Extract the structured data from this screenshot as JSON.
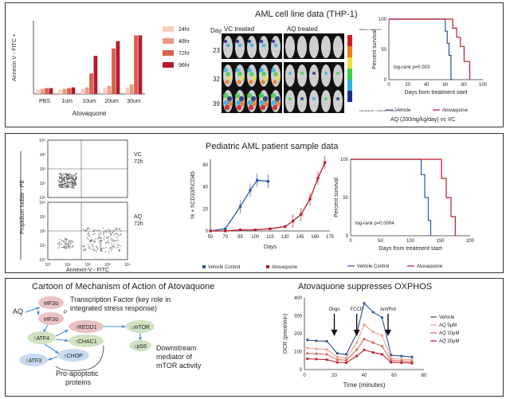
{
  "panel1": {
    "bar_chart": {
      "type": "bar",
      "ylabel": "Annexin V - FITC +",
      "xlabel": "Atovaquone",
      "categories": [
        "PBS",
        "1um",
        "10um",
        "20um",
        "30um"
      ],
      "series": [
        {
          "name": "24hr",
          "color": "#f6cdbf",
          "values": [
            6,
            6,
            7,
            8,
            9
          ]
        },
        {
          "name": "48hr",
          "color": "#e99a86",
          "values": [
            7,
            7,
            9,
            11,
            13
          ]
        },
        {
          "name": "72hr",
          "color": "#d6624e",
          "values": [
            8,
            8,
            28,
            62,
            80
          ]
        },
        {
          "name": "96hr",
          "color": "#b81a2c",
          "values": [
            8,
            9,
            52,
            72,
            80
          ]
        }
      ],
      "ylim": [
        0,
        100
      ]
    },
    "imaging": {
      "title": "AML cell line data (THP-1)",
      "day_label": "Day",
      "col_labels": [
        "VC treated",
        "AQ treated"
      ],
      "days": [
        "23",
        "32",
        "39"
      ],
      "scale_top": "Radiance (p/sec/cm²/sr)",
      "scale_bottom": "Color Scale Min = 1.00e4 Max = 1.00e6"
    },
    "survival": {
      "ylabel": "Percent survival",
      "xlabel": "Days from treatment start",
      "yticks": [
        "0",
        "50",
        "100"
      ],
      "xticks": [
        "0",
        "20",
        "40",
        "60",
        "80",
        "100"
      ],
      "pvalue": "log-rank p=0.003",
      "legend": [
        {
          "name": "Vehicle",
          "color": "#2b4f8a"
        },
        {
          "name": "Atovaquone",
          "color": "#b81a2c"
        }
      ],
      "note": "AQ (200mg/kg/day) vs VC",
      "series": [
        {
          "name": "Vehicle",
          "steps_x": [
            0,
            60,
            60,
            62,
            62,
            64,
            64,
            66,
            66,
            68
          ],
          "steps_y": [
            100,
            100,
            80,
            80,
            60,
            60,
            40,
            40,
            0,
            0
          ]
        },
        {
          "name": "Atovaquone",
          "steps_x": [
            0,
            68,
            68,
            72,
            72,
            76,
            76,
            80,
            80,
            86,
            86
          ],
          "steps_y": [
            100,
            100,
            85,
            85,
            70,
            70,
            55,
            55,
            30,
            30,
            0
          ]
        }
      ]
    }
  },
  "panel2": {
    "flow": {
      "ylabel": "Propidium Iodide - PE",
      "xlabel": "Annexin-V - FITC",
      "ticks": [
        "10⁰",
        "10¹",
        "10²",
        "10³",
        "10⁴"
      ],
      "plots": [
        {
          "label": "VC",
          "sub": "72h"
        },
        {
          "label": "AQ",
          "sub": "72h"
        }
      ]
    },
    "line_chart": {
      "type": "line",
      "title": "Pediatric AML patient sample data",
      "ylabel": "% + hCD33/hCD45",
      "xlabel": "Days",
      "xticks": [
        55,
        70,
        85,
        100,
        115,
        130,
        145,
        160,
        175
      ],
      "yticks": [
        0,
        20,
        40,
        60
      ],
      "legend": [
        {
          "name": "Vehicle Control",
          "color": "#2b5aa0"
        },
        {
          "name": "Atovaquone",
          "color": "#b81a2c"
        }
      ],
      "series": [
        {
          "name": "Vehicle Control",
          "x": [
            55,
            70,
            85,
            95,
            102,
            113
          ],
          "y": [
            0,
            2,
            22,
            37,
            46,
            45
          ]
        },
        {
          "name": "Atovaquone",
          "x": [
            55,
            70,
            85,
            100,
            115,
            130,
            138,
            146,
            155,
            163,
            170
          ],
          "y": [
            0,
            0,
            1,
            1,
            2,
            4,
            9,
            15,
            29,
            48,
            62
          ]
        }
      ]
    },
    "survival": {
      "ylabel": "Percent survival",
      "xlabel": "Days from treatment start",
      "yticks": [
        "0",
        "50",
        "100"
      ],
      "xticks": [
        "0",
        "50",
        "100",
        "150",
        "200"
      ],
      "pvalue": "log-rank p=0.0004",
      "legend": [
        {
          "name": "Vehicle Control",
          "color": "#2b5aa0"
        },
        {
          "name": "Atovaquone",
          "color": "#b81a2c"
        }
      ],
      "series": [
        {
          "name": "Vehicle Control",
          "steps_x": [
            0,
            118,
            118,
            124,
            124,
            130,
            130,
            134,
            134
          ],
          "steps_y": [
            100,
            100,
            80,
            80,
            50,
            50,
            20,
            20,
            0
          ]
        },
        {
          "name": "Atovaquone",
          "steps_x": [
            0,
            152,
            152,
            160,
            160,
            168,
            168,
            175,
            175
          ],
          "steps_y": [
            100,
            100,
            75,
            75,
            50,
            50,
            25,
            25,
            0
          ]
        }
      ]
    }
  },
  "panel3": {
    "cartoon": {
      "title": "Cartoon of Mechanism of Action of Atovaquone",
      "aq": "AQ",
      "eif2a": "eIF2α",
      "eif2ap": "eIF2α",
      "p": "P",
      "tf_text": "Transcription Factor (key role in integrated stress response)",
      "atf4": "↑ATF4",
      "redd1": "↑REDD1",
      "chac1": "↑CHAC1",
      "chop": "↑CHOP",
      "atf3": "↑ATF3",
      "mtor": "↓mTOR",
      "ps6": "↓pS6",
      "downstream": "Downstream mediator of mTOR activity",
      "proapop": "Pro-apoptotic proteins"
    },
    "ocr": {
      "type": "line",
      "title": "Atovaquone suppresses OXPHOS",
      "ylabel": "OCR (pmol/min)",
      "xlabel": "Time (minutes)",
      "xticks": [
        0,
        20,
        40,
        60,
        80
      ],
      "yticks": [
        0,
        100,
        200,
        300,
        400
      ],
      "annotations": [
        "Oligo",
        "FCCP",
        "Ant/Rot"
      ],
      "legend": [
        {
          "name": "Vehicle",
          "color": "#2b4f8a"
        },
        {
          "name": "AQ 5μM",
          "color": "#e8a090"
        },
        {
          "name": "AQ 10μM",
          "color": "#d66a5a"
        },
        {
          "name": "AQ 20μM",
          "color": "#b81a2c"
        }
      ],
      "x": [
        2,
        8,
        15,
        22,
        28,
        35,
        40,
        46,
        52,
        58,
        65,
        72
      ],
      "series": [
        {
          "name": "Vehicle",
          "y": [
            165,
            160,
            158,
            90,
            85,
            200,
            370,
            320,
            290,
            80,
            75,
            70
          ]
        },
        {
          "name": "AQ 5μM",
          "y": [
            120,
            115,
            112,
            70,
            65,
            150,
            250,
            210,
            190,
            60,
            58,
            55
          ]
        },
        {
          "name": "AQ 10μM",
          "y": [
            90,
            88,
            85,
            55,
            52,
            110,
            170,
            150,
            130,
            50,
            48,
            45
          ]
        },
        {
          "name": "AQ 20μM",
          "y": [
            60,
            58,
            55,
            40,
            38,
            75,
            110,
            95,
            85,
            40,
            38,
            35
          ]
        }
      ]
    }
  }
}
